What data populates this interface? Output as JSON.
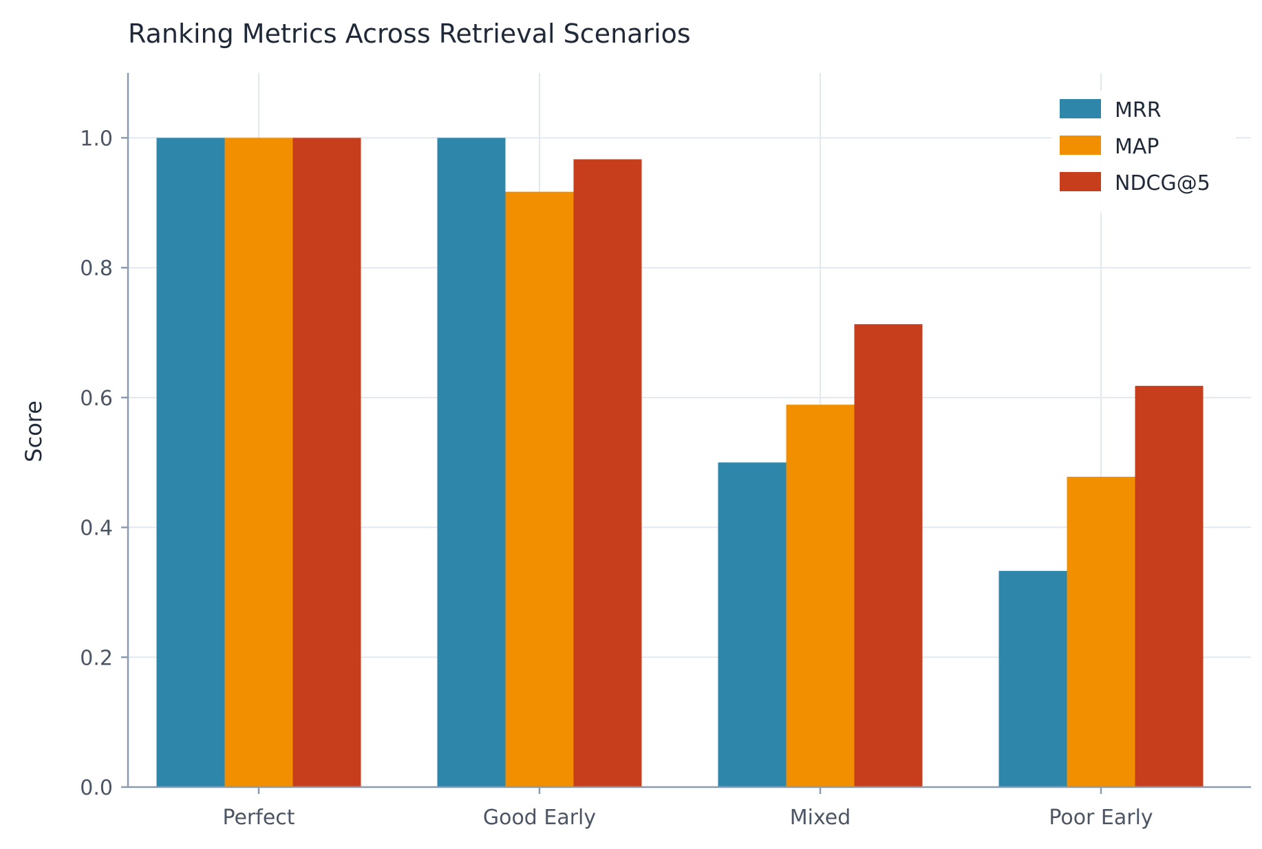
{
  "chart_data": {
    "type": "bar",
    "title": "Ranking Metrics Across Retrieval Scenarios",
    "xlabel": "",
    "ylabel": "Score",
    "ylim": [
      0,
      1.1
    ],
    "yticks": [
      "0.0",
      "0.2",
      "0.4",
      "0.6",
      "0.8",
      "1.0"
    ],
    "grid": true,
    "legend_position": "top-right",
    "categories": [
      "Perfect",
      "Good Early",
      "Mixed",
      "Poor Early"
    ],
    "series": [
      {
        "name": "MRR",
        "color": "#2e86ab",
        "values": [
          1.0,
          1.0,
          0.5,
          0.333
        ]
      },
      {
        "name": "MAP",
        "color": "#f18f01",
        "values": [
          1.0,
          0.917,
          0.589,
          0.478
        ]
      },
      {
        "name": "NDCG@5",
        "color": "#c73e1d",
        "values": [
          1.0,
          0.967,
          0.713,
          0.618
        ]
      }
    ]
  }
}
